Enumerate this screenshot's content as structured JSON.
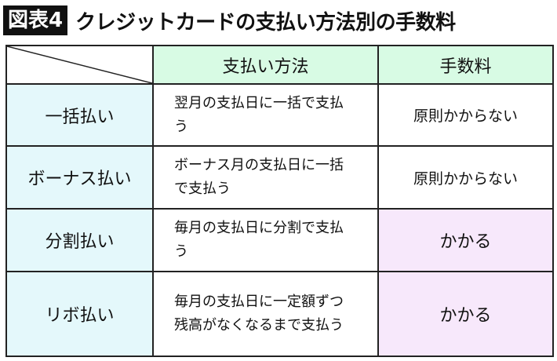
{
  "title": {
    "badge": "図表4",
    "text": "クレジットカードの支払い方法別の手数料"
  },
  "table": {
    "headers": [
      "",
      "支払い方法",
      "手数料"
    ],
    "rows": [
      {
        "type": "一括払い",
        "method": "翌月の支払日に一括で支払う",
        "fee": "原則かからない"
      },
      {
        "type": "ボーナス払い",
        "method": "ボーナス月の支払日に一括で支払う",
        "fee": "原則かからない"
      },
      {
        "type": "分割払い",
        "method": "毎月の支払日に分割で支払う",
        "fee": "かかる"
      },
      {
        "type": "リボ払い",
        "method": "毎月の支払日に一定額ずつ残高がなくなるまで支払う",
        "fee": "かかる"
      }
    ]
  },
  "colors": {
    "header": "#d8fbe4",
    "row_header": "#e4f8fb",
    "fee_highlight": "#f7e8fb"
  }
}
